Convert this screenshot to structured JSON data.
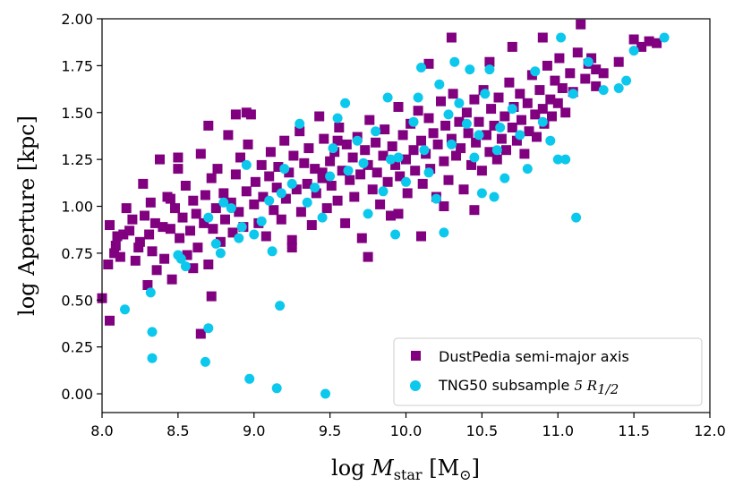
{
  "chart_data": {
    "type": "scatter",
    "xlabel": "log M_star [M_sun]",
    "ylabel": "log Aperture [kpc]",
    "xlim": [
      8.0,
      12.0
    ],
    "ylim": [
      -0.1,
      2.0
    ],
    "xticks": [
      "8.0",
      "8.5",
      "9.0",
      "9.5",
      "10.0",
      "10.5",
      "11.0",
      "11.5",
      "12.0"
    ],
    "yticks": [
      "0.00",
      "0.25",
      "0.50",
      "0.75",
      "1.00",
      "1.25",
      "1.50",
      "1.75",
      "2.00"
    ],
    "grid": false,
    "legend_position": "lower-right",
    "series": [
      {
        "name": "DustPedia semi-major axis",
        "marker": "square",
        "color": "#800080",
        "points": [
          [
            8.0,
            0.51
          ],
          [
            8.04,
            0.69
          ],
          [
            8.05,
            0.39
          ],
          [
            8.05,
            0.9
          ],
          [
            8.08,
            0.75
          ],
          [
            8.09,
            0.79
          ],
          [
            8.1,
            0.84
          ],
          [
            8.12,
            0.73
          ],
          [
            8.14,
            0.85
          ],
          [
            8.16,
            0.99
          ],
          [
            8.18,
            0.87
          ],
          [
            8.2,
            0.93
          ],
          [
            8.22,
            0.71
          ],
          [
            8.24,
            0.78
          ],
          [
            8.25,
            0.81
          ],
          [
            8.27,
            1.12
          ],
          [
            8.28,
            0.95
          ],
          [
            8.3,
            0.58
          ],
          [
            8.31,
            0.85
          ],
          [
            8.32,
            1.02
          ],
          [
            8.33,
            0.76
          ],
          [
            8.35,
            0.91
          ],
          [
            8.36,
            0.66
          ],
          [
            8.38,
            1.25
          ],
          [
            8.4,
            0.89
          ],
          [
            8.41,
            0.72
          ],
          [
            8.43,
            1.05
          ],
          [
            8.45,
            0.88
          ],
          [
            8.46,
            0.61
          ],
          [
            8.48,
            0.99
          ],
          [
            8.5,
            1.2
          ],
          [
            8.51,
            0.83
          ],
          [
            8.53,
            0.94
          ],
          [
            8.55,
            1.11
          ],
          [
            8.56,
            0.74
          ],
          [
            8.58,
            0.87
          ],
          [
            8.6,
            1.03
          ],
          [
            8.62,
            0.96
          ],
          [
            8.63,
            0.78
          ],
          [
            8.65,
            1.28
          ],
          [
            8.67,
            0.91
          ],
          [
            8.68,
            1.06
          ],
          [
            8.7,
            0.69
          ],
          [
            8.72,
            1.15
          ],
          [
            8.73,
            0.88
          ],
          [
            8.75,
            0.99
          ],
          [
            8.76,
            1.2
          ],
          [
            8.78,
            0.81
          ],
          [
            8.8,
            1.07
          ],
          [
            8.81,
            0.93
          ],
          [
            8.83,
            1.38
          ],
          [
            8.85,
            1.02
          ],
          [
            8.86,
            0.86
          ],
          [
            8.88,
            1.17
          ],
          [
            8.9,
            0.97
          ],
          [
            8.91,
            1.26
          ],
          [
            8.93,
            0.89
          ],
          [
            8.95,
            1.08
          ],
          [
            8.96,
            1.33
          ],
          [
            8.98,
            1.49
          ],
          [
            9.0,
            1.01
          ],
          [
            9.01,
            1.13
          ],
          [
            9.03,
            0.91
          ],
          [
            9.05,
            1.22
          ],
          [
            9.06,
            1.05
          ],
          [
            9.08,
            0.84
          ],
          [
            9.1,
            1.16
          ],
          [
            9.11,
            1.29
          ],
          [
            9.13,
            0.98
          ],
          [
            9.15,
            1.1
          ],
          [
            9.16,
            1.21
          ],
          [
            9.18,
            0.93
          ],
          [
            9.2,
            1.35
          ],
          [
            9.21,
            1.04
          ],
          [
            9.23,
            1.18
          ],
          [
            9.25,
            0.82
          ],
          [
            9.26,
            1.27
          ],
          [
            9.28,
            1.09
          ],
          [
            9.3,
            1.4
          ],
          [
            9.31,
            0.97
          ],
          [
            9.33,
            1.23
          ],
          [
            9.35,
            1.12
          ],
          [
            9.36,
            1.31
          ],
          [
            9.38,
            0.9
          ],
          [
            9.4,
            1.2
          ],
          [
            9.41,
            1.07
          ],
          [
            9.43,
            1.48
          ],
          [
            9.45,
            1.15
          ],
          [
            9.46,
            1.36
          ],
          [
            9.48,
            0.99
          ],
          [
            9.5,
            1.24
          ],
          [
            9.51,
            1.11
          ],
          [
            9.53,
            1.29
          ],
          [
            9.55,
            1.03
          ],
          [
            9.56,
            1.42
          ],
          [
            9.58,
            1.19
          ],
          [
            9.6,
            0.91
          ],
          [
            9.61,
            1.33
          ],
          [
            9.63,
            1.14
          ],
          [
            9.65,
            1.26
          ],
          [
            9.66,
            1.05
          ],
          [
            9.68,
            1.37
          ],
          [
            9.7,
            1.17
          ],
          [
            9.71,
            0.83
          ],
          [
            9.73,
            1.3
          ],
          [
            9.75,
            1.22
          ],
          [
            9.76,
            1.46
          ],
          [
            9.78,
            1.09
          ],
          [
            9.8,
            1.34
          ],
          [
            9.81,
            1.18
          ],
          [
            9.83,
            1.01
          ],
          [
            9.85,
            1.27
          ],
          [
            9.86,
            1.41
          ],
          [
            9.88,
            1.13
          ],
          [
            9.9,
            0.95
          ],
          [
            9.91,
            1.32
          ],
          [
            9.93,
            1.22
          ],
          [
            9.95,
            1.53
          ],
          [
            9.96,
            1.16
          ],
          [
            9.98,
            1.38
          ],
          [
            10.0,
            1.25
          ],
          [
            10.01,
            1.07
          ],
          [
            10.03,
            1.44
          ],
          [
            10.05,
            1.3
          ],
          [
            10.06,
            1.19
          ],
          [
            10.08,
            1.51
          ],
          [
            10.1,
            1.35
          ],
          [
            10.11,
            1.12
          ],
          [
            10.13,
            1.28
          ],
          [
            10.15,
            1.47
          ],
          [
            10.16,
            1.2
          ],
          [
            10.18,
            1.39
          ],
          [
            10.2,
            1.05
          ],
          [
            10.21,
            1.33
          ],
          [
            10.23,
            1.56
          ],
          [
            10.25,
            1.24
          ],
          [
            10.26,
            1.43
          ],
          [
            10.28,
            1.14
          ],
          [
            10.3,
            1.36
          ],
          [
            10.31,
            1.6
          ],
          [
            10.33,
            1.27
          ],
          [
            10.35,
            1.45
          ],
          [
            10.36,
            1.31
          ],
          [
            10.38,
            1.09
          ],
          [
            10.4,
            1.5
          ],
          [
            10.41,
            1.39
          ],
          [
            10.43,
            1.22
          ],
          [
            10.45,
            1.57
          ],
          [
            10.46,
            1.34
          ],
          [
            10.48,
            1.45
          ],
          [
            10.5,
            1.19
          ],
          [
            10.51,
            1.62
          ],
          [
            10.53,
            1.38
          ],
          [
            10.55,
            1.29
          ],
          [
            10.56,
            1.52
          ],
          [
            10.58,
            1.43
          ],
          [
            10.6,
            1.25
          ],
          [
            10.61,
            1.58
          ],
          [
            10.63,
            1.36
          ],
          [
            10.65,
            1.48
          ],
          [
            10.66,
            1.3
          ],
          [
            10.68,
            1.66
          ],
          [
            10.7,
            1.42
          ],
          [
            10.71,
            1.53
          ],
          [
            10.73,
            1.35
          ],
          [
            10.75,
            1.6
          ],
          [
            10.76,
            1.46
          ],
          [
            10.78,
            1.28
          ],
          [
            10.8,
            1.55
          ],
          [
            10.81,
            1.4
          ],
          [
            10.83,
            1.7
          ],
          [
            10.85,
            1.49
          ],
          [
            10.86,
            1.37
          ],
          [
            10.88,
            1.62
          ],
          [
            10.9,
            1.52
          ],
          [
            10.91,
            1.44
          ],
          [
            10.93,
            1.75
          ],
          [
            10.95,
            1.57
          ],
          [
            10.96,
            1.48
          ],
          [
            10.98,
            1.67
          ],
          [
            11.0,
            1.55
          ],
          [
            11.01,
            1.79
          ],
          [
            11.03,
            1.63
          ],
          [
            11.05,
            1.5
          ],
          [
            11.08,
            1.71
          ],
          [
            11.1,
            1.61
          ],
          [
            11.13,
            1.82
          ],
          [
            11.15,
            1.97
          ],
          [
            11.18,
            1.68
          ],
          [
            11.2,
            1.76
          ],
          [
            11.22,
            1.79
          ],
          [
            11.25,
            1.64
          ],
          [
            11.3,
            1.71
          ],
          [
            11.4,
            1.77
          ],
          [
            11.5,
            1.89
          ],
          [
            11.55,
            1.85
          ],
          [
            11.6,
            1.88
          ],
          [
            11.65,
            1.87
          ],
          [
            10.15,
            1.76
          ],
          [
            10.3,
            1.9
          ],
          [
            10.55,
            1.77
          ],
          [
            10.7,
            1.85
          ],
          [
            10.9,
            1.9
          ],
          [
            11.25,
            1.73
          ],
          [
            9.75,
            0.73
          ],
          [
            9.95,
            0.96
          ],
          [
            8.65,
            0.32
          ],
          [
            8.72,
            0.52
          ],
          [
            8.6,
            0.67
          ],
          [
            8.95,
            1.5
          ],
          [
            8.88,
            1.49
          ],
          [
            8.7,
            1.43
          ],
          [
            8.5,
            1.26
          ],
          [
            8.45,
            1.04
          ],
          [
            9.25,
            0.78
          ],
          [
            9.45,
            1.18
          ],
          [
            9.55,
            1.35
          ],
          [
            10.1,
            0.84
          ],
          [
            10.25,
            1.0
          ],
          [
            10.45,
            0.98
          ]
        ]
      },
      {
        "name": "TNG50 subsample 5 R_1/2",
        "marker": "circle",
        "color": "#0cc8ec",
        "points": [
          [
            8.15,
            0.45
          ],
          [
            8.32,
            0.54
          ],
          [
            8.33,
            0.33
          ],
          [
            8.33,
            0.19
          ],
          [
            8.5,
            0.74
          ],
          [
            8.52,
            0.72
          ],
          [
            8.55,
            0.68
          ],
          [
            8.68,
            0.17
          ],
          [
            8.7,
            0.35
          ],
          [
            8.7,
            0.94
          ],
          [
            8.75,
            0.8
          ],
          [
            8.78,
            0.75
          ],
          [
            8.8,
            1.02
          ],
          [
            8.85,
            0.99
          ],
          [
            8.9,
            0.83
          ],
          [
            8.92,
            0.89
          ],
          [
            8.97,
            0.08
          ],
          [
            8.95,
            1.22
          ],
          [
            9.0,
            0.85
          ],
          [
            9.05,
            0.92
          ],
          [
            9.1,
            1.03
          ],
          [
            9.12,
            0.76
          ],
          [
            9.15,
            0.03
          ],
          [
            9.17,
            0.47
          ],
          [
            9.18,
            1.07
          ],
          [
            9.2,
            1.2
          ],
          [
            9.25,
            1.12
          ],
          [
            9.3,
            1.44
          ],
          [
            9.35,
            1.02
          ],
          [
            9.4,
            1.1
          ],
          [
            9.45,
            0.94
          ],
          [
            9.47,
            0.0
          ],
          [
            9.5,
            1.16
          ],
          [
            9.52,
            1.31
          ],
          [
            9.55,
            1.47
          ],
          [
            9.6,
            1.55
          ],
          [
            9.62,
            1.19
          ],
          [
            9.68,
            1.35
          ],
          [
            9.72,
            1.23
          ],
          [
            9.75,
            0.96
          ],
          [
            9.8,
            1.4
          ],
          [
            9.85,
            1.08
          ],
          [
            9.88,
            1.58
          ],
          [
            9.9,
            1.25
          ],
          [
            9.93,
            0.85
          ],
          [
            9.95,
            1.26
          ],
          [
            10.0,
            1.13
          ],
          [
            10.05,
            1.45
          ],
          [
            10.08,
            1.58
          ],
          [
            10.1,
            1.74
          ],
          [
            10.12,
            1.3
          ],
          [
            10.15,
            1.18
          ],
          [
            10.2,
            1.04
          ],
          [
            10.22,
            1.65
          ],
          [
            10.25,
            0.86
          ],
          [
            10.28,
            1.49
          ],
          [
            10.3,
            1.33
          ],
          [
            10.32,
            1.77
          ],
          [
            10.35,
            1.55
          ],
          [
            10.4,
            1.44
          ],
          [
            10.42,
            1.73
          ],
          [
            10.45,
            1.26
          ],
          [
            10.48,
            1.38
          ],
          [
            10.5,
            1.07
          ],
          [
            10.52,
            1.6
          ],
          [
            10.55,
            1.73
          ],
          [
            10.58,
            1.05
          ],
          [
            10.6,
            1.3
          ],
          [
            10.62,
            1.42
          ],
          [
            10.65,
            1.15
          ],
          [
            10.7,
            1.52
          ],
          [
            10.75,
            1.38
          ],
          [
            10.8,
            1.2
          ],
          [
            10.85,
            1.72
          ],
          [
            10.9,
            1.45
          ],
          [
            10.95,
            1.35
          ],
          [
            11.0,
            1.25
          ],
          [
            11.02,
            1.9
          ],
          [
            11.05,
            1.25
          ],
          [
            11.1,
            1.6
          ],
          [
            11.12,
            0.94
          ],
          [
            11.2,
            1.77
          ],
          [
            11.3,
            1.62
          ],
          [
            11.4,
            1.63
          ],
          [
            11.45,
            1.67
          ],
          [
            11.5,
            1.83
          ],
          [
            11.7,
            1.9
          ]
        ]
      }
    ]
  },
  "legend": {
    "item1_label": "DustPedia semi-major axis",
    "item2_label": "TNG50 subsample",
    "item2_math": "5 R1/2"
  },
  "colors": {
    "dustpedia": "#800080",
    "tng50": "#0cc8ec",
    "axis": "#000000"
  }
}
